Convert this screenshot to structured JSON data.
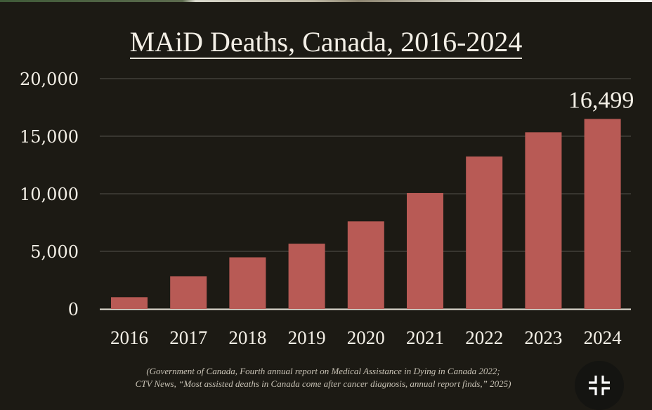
{
  "chart_data": {
    "type": "bar",
    "title": "MAiD Deaths, Canada, 2016-2024",
    "xlabel": "",
    "ylabel": "",
    "categories": [
      "2016",
      "2017",
      "2018",
      "2019",
      "2020",
      "2021",
      "2022",
      "2023",
      "2024"
    ],
    "values": [
      1018,
      2838,
      4480,
      5665,
      7603,
      10064,
      13241,
      15343,
      16499
    ],
    "ylim": [
      0,
      20000
    ],
    "yticks": [
      0,
      5000,
      10000,
      15000,
      20000
    ],
    "ytick_labels": [
      "0",
      "5,000",
      "10,000",
      "15,000",
      "20,000"
    ],
    "grid": true,
    "annotations": [
      {
        "category": "2024",
        "text": "16,499"
      }
    ],
    "bar_color": "#b85a55"
  },
  "source": {
    "line1": "(Government of Canada, Fourth annual report on Medical Assistance in Dying in Canada 2022;",
    "line2": "CTV News, “Most assisted deaths in Canada come after cancer diagnosis, annual report finds,” 2025)"
  },
  "controls": {
    "collapse_icon": "collapse-fullscreen-icon"
  }
}
